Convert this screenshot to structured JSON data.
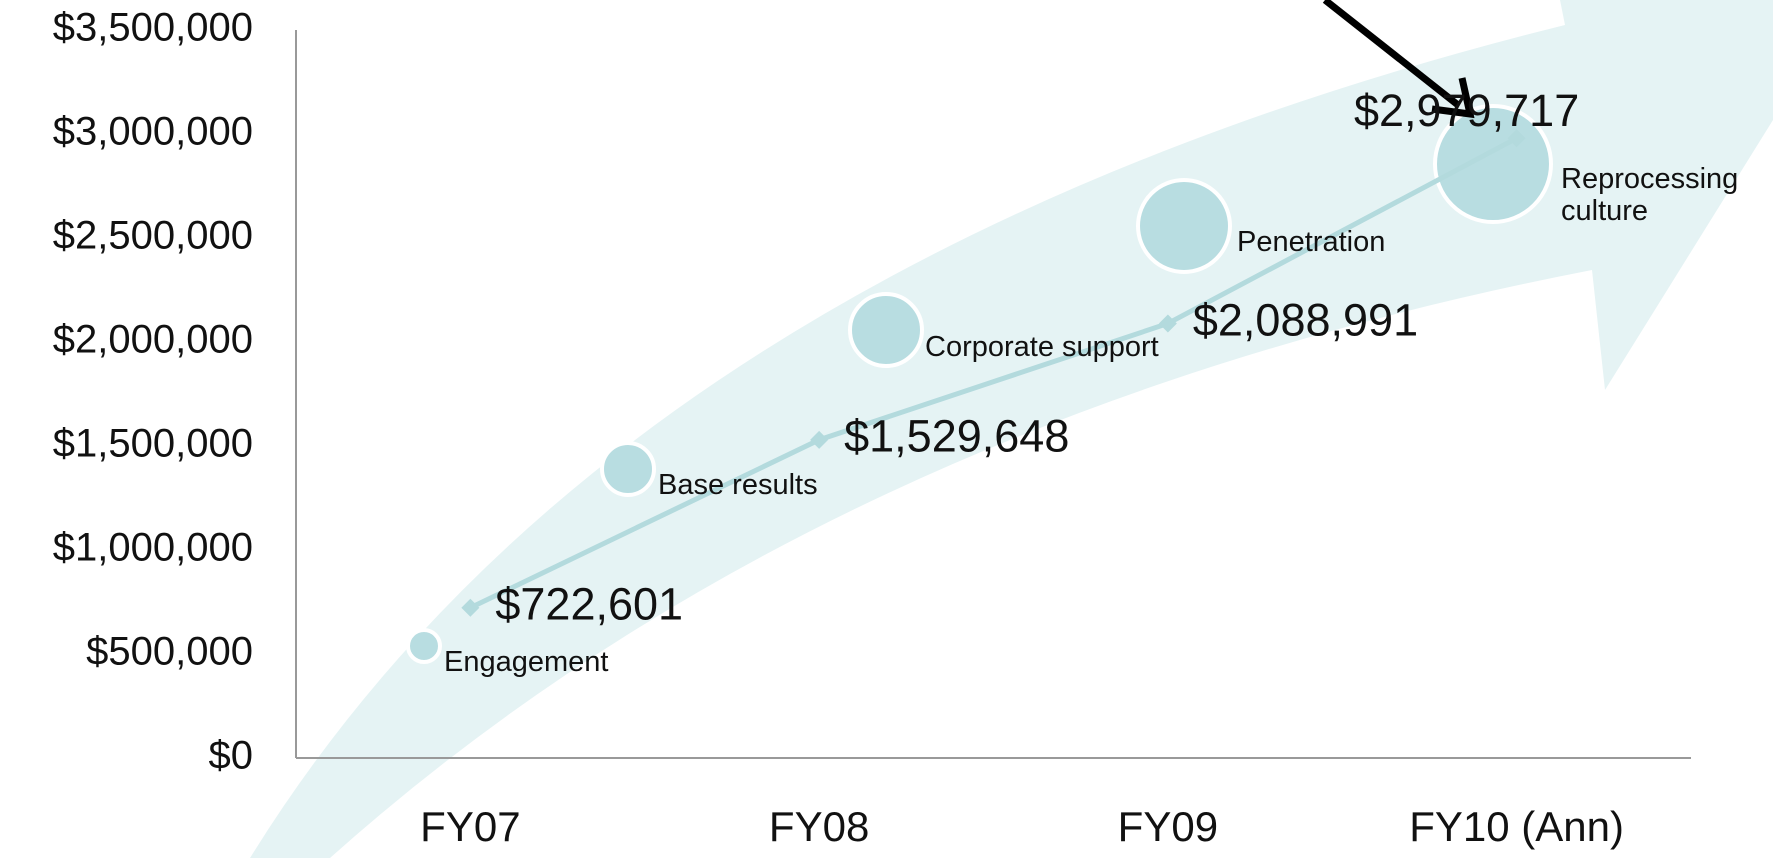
{
  "chart_data": {
    "type": "line",
    "categories": [
      "FY07",
      "FY08",
      "FY09",
      "FY10 (Ann)"
    ],
    "series": [
      {
        "color": "#b3dadd",
        "values": [
          722601,
          1529648,
          2088991,
          2979717
        ],
        "value_labels": [
          "$722,601",
          "$1,529,648",
          "$2,088,991",
          "$2,979,717"
        ]
      }
    ],
    "ylim": [
      0,
      3500000
    ],
    "yticks": [
      {
        "value": 0,
        "label": "$0"
      },
      {
        "value": 500000,
        "label": "$500,000"
      },
      {
        "value": 1000000,
        "label": "$1,000,000"
      },
      {
        "value": 1500000,
        "label": "$1,500,000"
      },
      {
        "value": 2000000,
        "label": "$2,000,000"
      },
      {
        "value": 2500000,
        "label": "$2,500,000"
      },
      {
        "value": 3000000,
        "label": "$3,000,000"
      },
      {
        "value": 3500000,
        "label": "$3,500,000"
      }
    ],
    "stages": [
      "Engagement",
      "Base results",
      "Corporate support",
      "Penetration",
      "Reprocessing culture"
    ]
  }
}
